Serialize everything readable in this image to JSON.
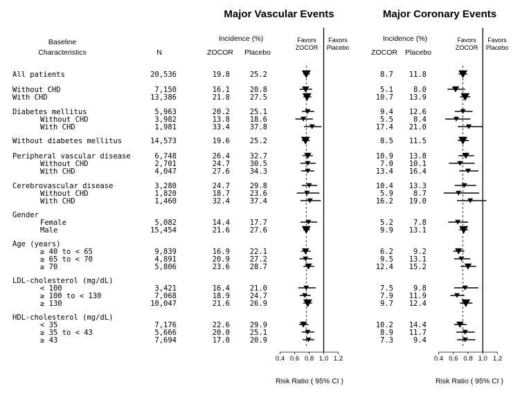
{
  "headers": {
    "baseline_line1": "Baseline",
    "baseline_line2": "Characteristics",
    "n": "N",
    "incidence": "Incidence (%)",
    "zocor": "ZOCOR",
    "placebo": "Placebo",
    "favors1": "Favors",
    "favors_zocor": "ZOCOR",
    "favors_placebo": "Placebo",
    "risk_ratio": "Risk Ratio ( 95% CI )"
  },
  "chart_data": [
    {
      "type": "forest",
      "title": "Major Vascular Events",
      "xlabel": "Risk Ratio ( 95% CI )",
      "xlim": [
        0.4,
        1.2
      ],
      "xticks": [
        "0.4",
        "0.6",
        "0.8",
        "1.0",
        "1.2"
      ],
      "reference_line": 1.0,
      "overall_dashed_line": 0.76
    },
    {
      "type": "forest",
      "title": "Major Coronary Events",
      "xlabel": "Risk Ratio ( 95% CI )",
      "xlim": [
        0.4,
        1.2
      ],
      "xticks": [
        "0.4",
        "0.6",
        "0.8",
        "1.0",
        "1.2"
      ],
      "reference_line": 1.0,
      "overall_dashed_line": 0.73
    }
  ],
  "rows": [
    {
      "label": "All patients",
      "indent": 0,
      "n": "20,536",
      "v_z": "19.8",
      "v_p": "25.2",
      "v_rr": 0.76,
      "v_lo": 0.72,
      "v_hi": 0.81,
      "c_z": "8.7",
      "c_p": "11.8",
      "c_rr": 0.73,
      "c_lo": 0.67,
      "c_hi": 0.79,
      "size": "big"
    },
    {
      "label": "Without CHD",
      "indent": 0,
      "n": "7,150",
      "v_z": "16.1",
      "v_p": "20.8",
      "v_rr": 0.75,
      "v_lo": 0.67,
      "v_hi": 0.84,
      "c_z": "5.1",
      "c_p": "8.0",
      "c_rr": 0.63,
      "c_lo": 0.52,
      "c_hi": 0.76,
      "size": "med"
    },
    {
      "label": "With CHD",
      "indent": 0,
      "n": "13,386",
      "v_z": "21.8",
      "v_p": "27.5",
      "v_rr": 0.77,
      "v_lo": 0.72,
      "v_hi": 0.83,
      "c_z": "10.7",
      "c_p": "13.9",
      "c_rr": 0.76,
      "c_lo": 0.69,
      "c_hi": 0.83,
      "size": "big"
    },
    {
      "label": "Diabetes mellitus",
      "indent": 0,
      "n": "5,963",
      "v_z": "20.2",
      "v_p": "25.1",
      "v_rr": 0.78,
      "v_lo": 0.7,
      "v_hi": 0.87,
      "c_z": "9.4",
      "c_p": "12.6",
      "c_rr": 0.73,
      "c_lo": 0.62,
      "c_hi": 0.86,
      "size": "small"
    },
    {
      "label": "Without CHD",
      "indent": 1,
      "n": "3,982",
      "v_z": "13.8",
      "v_p": "18.6",
      "v_rr": 0.72,
      "v_lo": 0.61,
      "v_hi": 0.85,
      "c_z": "5.5",
      "c_p": "8.4",
      "c_rr": 0.64,
      "c_lo": 0.49,
      "c_hi": 0.83,
      "size": "small"
    },
    {
      "label": "With CHD",
      "indent": 1,
      "n": "1,981",
      "v_z": "33.4",
      "v_p": "37.8",
      "v_rr": 0.84,
      "v_lo": 0.73,
      "v_hi": 0.97,
      "c_z": "17.4",
      "c_p": "21.0",
      "c_rr": 0.81,
      "c_lo": 0.66,
      "c_hi": 1.0,
      "size": "small"
    },
    {
      "label": "Without diabetes mellitus",
      "indent": 0,
      "n": "14,573",
      "v_z": "19.6",
      "v_p": "25.2",
      "v_rr": 0.75,
      "v_lo": 0.7,
      "v_hi": 0.81,
      "c_z": "8.5",
      "c_p": "11.5",
      "c_rr": 0.73,
      "c_lo": 0.66,
      "c_hi": 0.81,
      "size": "big"
    },
    {
      "label": "Peripheral vascular disease",
      "indent": 0,
      "n": "6,748",
      "v_z": "26.4",
      "v_p": "32.7",
      "v_rr": 0.78,
      "v_lo": 0.71,
      "v_hi": 0.85,
      "c_z": "10.9",
      "c_p": "13.8",
      "c_rr": 0.77,
      "c_lo": 0.67,
      "c_hi": 0.88,
      "size": "med"
    },
    {
      "label": "Without CHD",
      "indent": 1,
      "n": "2,701",
      "v_z": "24.7",
      "v_p": "30.5",
      "v_rr": 0.78,
      "v_lo": 0.68,
      "v_hi": 0.89,
      "c_z": "7.0",
      "c_p": "10.1",
      "c_rr": 0.69,
      "c_lo": 0.54,
      "c_hi": 0.89,
      "size": "small"
    },
    {
      "label": "With CHD",
      "indent": 1,
      "n": "4,047",
      "v_z": "27.6",
      "v_p": "34.3",
      "v_rr": 0.78,
      "v_lo": 0.69,
      "v_hi": 0.87,
      "c_z": "13.4",
      "c_p": "16.4",
      "c_rr": 0.8,
      "c_lo": 0.68,
      "c_hi": 0.94,
      "size": "small"
    },
    {
      "label": "Cerebrovascular disease",
      "indent": 0,
      "n": "3,280",
      "v_z": "24.7",
      "v_p": "29.8",
      "v_rr": 0.8,
      "v_lo": 0.7,
      "v_hi": 0.91,
      "c_z": "10.4",
      "c_p": "13.3",
      "c_rr": 0.75,
      "c_lo": 0.62,
      "c_hi": 0.91,
      "size": "small"
    },
    {
      "label": "Without CHD",
      "indent": 1,
      "n": "1,820",
      "v_z": "18.7",
      "v_p": "23.6",
      "v_rr": 0.77,
      "v_lo": 0.63,
      "v_hi": 0.94,
      "c_z": "5.9",
      "c_p": "8.7",
      "c_rr": 0.67,
      "c_lo": 0.47,
      "c_hi": 0.95,
      "size": "small"
    },
    {
      "label": "With CHD",
      "indent": 1,
      "n": "1,460",
      "v_z": "32.4",
      "v_p": "37.4",
      "v_rr": 0.81,
      "v_lo": 0.68,
      "v_hi": 0.96,
      "c_z": "16.2",
      "c_p": "19.0",
      "c_rr": 0.83,
      "c_lo": 0.65,
      "c_hi": 1.05,
      "size": "small"
    },
    {
      "label": "Gender",
      "indent": 0,
      "header": true
    },
    {
      "label": "Female",
      "indent": 1,
      "n": "5,082",
      "v_z": "14.4",
      "v_p": "17.7",
      "v_rr": 0.79,
      "v_lo": 0.68,
      "v_hi": 0.91,
      "c_z": "5.2",
      "c_p": "7.8",
      "c_rr": 0.66,
      "c_lo": 0.53,
      "c_hi": 0.8,
      "size": "small"
    },
    {
      "label": "Male",
      "indent": 1,
      "n": "15,454",
      "v_z": "21.6",
      "v_p": "27.6",
      "v_rr": 0.76,
      "v_lo": 0.72,
      "v_hi": 0.81,
      "c_z": "9.9",
      "c_p": "13.1",
      "c_rr": 0.74,
      "c_lo": 0.68,
      "c_hi": 0.8,
      "size": "big"
    },
    {
      "label": "Age (years)",
      "indent": 0,
      "header": true
    },
    {
      "label": "≥ 40 to < 65",
      "indent": 1,
      "n": "9,839",
      "v_z": "16.9",
      "v_p": "22.1",
      "v_rr": 0.75,
      "v_lo": 0.69,
      "v_hi": 0.82,
      "c_z": "6.2",
      "c_p": "9.2",
      "c_rr": 0.67,
      "c_lo": 0.6,
      "c_hi": 0.75,
      "size": "med"
    },
    {
      "label": "≥ 65 to < 70",
      "indent": 1,
      "n": "4,891",
      "v_z": "20.9",
      "v_p": "27.2",
      "v_rr": 0.75,
      "v_lo": 0.67,
      "v_hi": 0.84,
      "c_z": "9.5",
      "c_p": "13.1",
      "c_rr": 0.71,
      "c_lo": 0.61,
      "c_hi": 0.83,
      "size": "small"
    },
    {
      "label": "≥ 70",
      "indent": 1,
      "n": "5,806",
      "v_z": "23.6",
      "v_p": "28.7",
      "v_rr": 0.79,
      "v_lo": 0.72,
      "v_hi": 0.87,
      "c_z": "12.4",
      "c_p": "15.2",
      "c_rr": 0.8,
      "c_lo": 0.7,
      "c_hi": 0.91,
      "size": "med"
    },
    {
      "label": "LDL-cholesterol (mg/dL)",
      "indent": 0,
      "header": true
    },
    {
      "label": "< 100",
      "indent": 1,
      "n": "3,421",
      "v_z": "16.4",
      "v_p": "21.0",
      "v_rr": 0.76,
      "v_lo": 0.65,
      "v_hi": 0.89,
      "c_z": "7.5",
      "c_p": "9.8",
      "c_rr": 0.76,
      "c_lo": 0.61,
      "c_hi": 0.94,
      "size": "small"
    },
    {
      "label": "≥ 100 to < 130",
      "indent": 1,
      "n": "7,068",
      "v_z": "18.9",
      "v_p": "24.7",
      "v_rr": 0.74,
      "v_lo": 0.67,
      "v_hi": 0.82,
      "c_z": "7.9",
      "c_p": "11.9",
      "c_rr": 0.65,
      "c_lo": 0.56,
      "c_hi": 0.75,
      "size": "small"
    },
    {
      "label": "≥ 130",
      "indent": 1,
      "n": "10,047",
      "v_z": "21.6",
      "v_p": "26.9",
      "v_rr": 0.78,
      "v_lo": 0.72,
      "v_hi": 0.84,
      "c_z": "9.7",
      "c_p": "12.4",
      "c_rr": 0.77,
      "c_lo": 0.69,
      "c_hi": 0.86,
      "size": "big"
    },
    {
      "label": "HDL-cholesterol (mg/dL)",
      "indent": 0,
      "header": true
    },
    {
      "label": "< 35",
      "indent": 1,
      "n": "7,176",
      "v_z": "22.6",
      "v_p": "29.9",
      "v_rr": 0.72,
      "v_lo": 0.66,
      "v_hi": 0.79,
      "c_z": "10.2",
      "c_p": "14.4",
      "c_rr": 0.69,
      "c_lo": 0.61,
      "c_hi": 0.78,
      "size": "med"
    },
    {
      "label": "≥ 35 to < 43",
      "indent": 1,
      "n": "5,666",
      "v_z": "20.0",
      "v_p": "25.1",
      "v_rr": 0.78,
      "v_lo": 0.7,
      "v_hi": 0.87,
      "c_z": "8.9",
      "c_p": "11.7",
      "c_rr": 0.76,
      "c_lo": 0.64,
      "c_hi": 0.89,
      "size": "small"
    },
    {
      "label": "≥ 43",
      "indent": 1,
      "n": "7,694",
      "v_z": "17.0",
      "v_p": "20.9",
      "v_rr": 0.79,
      "v_lo": 0.71,
      "v_hi": 0.87,
      "c_z": "7.3",
      "c_p": "9.4",
      "c_rr": 0.76,
      "c_lo": 0.65,
      "c_hi": 0.9,
      "size": "small"
    }
  ]
}
